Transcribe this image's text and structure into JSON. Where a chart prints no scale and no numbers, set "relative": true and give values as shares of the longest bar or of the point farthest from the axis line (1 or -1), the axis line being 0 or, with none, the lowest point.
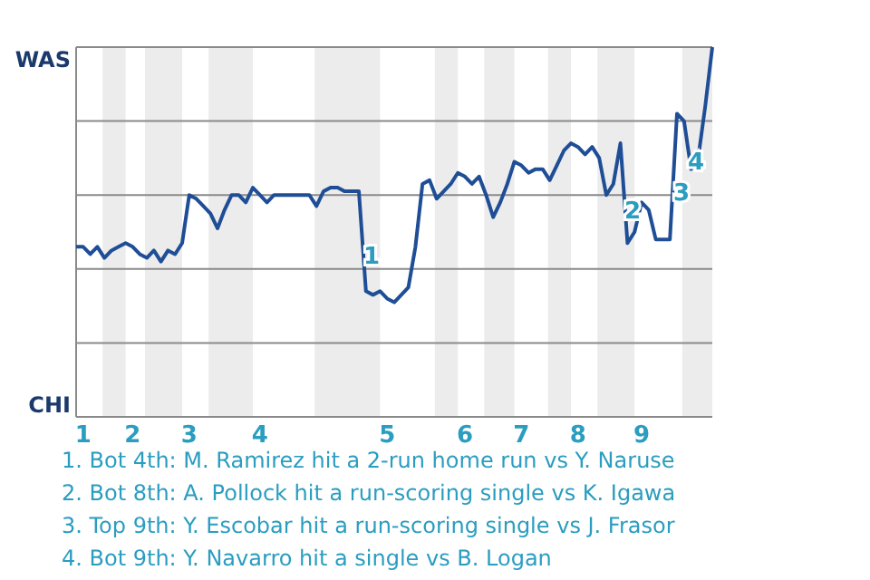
{
  "chart_data": {
    "type": "line",
    "relative": true,
    "categories": [
      null,
      "1",
      null,
      null,
      null,
      null,
      null,
      null,
      "2",
      null,
      null,
      null,
      null,
      null,
      null,
      null,
      "3",
      null,
      null,
      null,
      null,
      null,
      null,
      null,
      null,
      null,
      "4",
      null,
      null,
      null,
      null,
      null,
      null,
      null,
      null,
      null,
      null,
      null,
      null,
      null,
      null,
      null,
      null,
      null,
      "5",
      null,
      null,
      null,
      null,
      null,
      null,
      null,
      null,
      null,
      null,
      "6",
      null,
      null,
      null,
      null,
      null,
      null,
      null,
      "7",
      null,
      null,
      null,
      null,
      null,
      null,
      null,
      "8",
      null,
      null,
      null,
      null,
      null,
      null,
      null,
      null,
      "9",
      null,
      null,
      null,
      null,
      null,
      null,
      null,
      null,
      null,
      null
    ],
    "series": [
      {
        "color": "#1f4e96",
        "values": [
          0.46,
          0.46,
          0.44,
          0.46,
          0.43,
          0.45,
          0.46,
          0.47,
          0.46,
          0.44,
          0.43,
          0.45,
          0.42,
          0.45,
          0.44,
          0.47,
          0.6,
          0.59,
          0.57,
          0.55,
          0.51,
          0.56,
          0.6,
          0.6,
          0.58,
          0.62,
          0.6,
          0.58,
          0.6,
          0.6,
          0.6,
          0.6,
          0.6,
          0.6,
          0.57,
          0.61,
          0.62,
          0.62,
          0.61,
          0.61,
          0.61,
          0.34,
          0.33,
          0.34,
          0.32,
          0.31,
          0.33,
          0.35,
          0.46,
          0.63,
          0.64,
          0.59,
          0.61,
          0.63,
          0.66,
          0.65,
          0.63,
          0.65,
          0.6,
          0.54,
          0.58,
          0.63,
          0.69,
          0.68,
          0.66,
          0.67,
          0.67,
          0.64,
          0.68,
          0.72,
          0.74,
          0.73,
          0.71,
          0.73,
          0.7,
          0.6,
          0.63,
          0.74,
          0.47,
          0.5,
          0.58,
          0.56,
          0.48,
          0.48,
          0.48,
          0.82,
          0.8,
          0.67,
          0.7,
          0.84,
          1
        ]
      }
    ],
    "grid": "y",
    "annotations": [
      "WAS",
      "CHI",
      "1",
      "2",
      "3",
      "4",
      "1. Bot 4th: M. Ramirez hit a 2-run home run vs Y. Naruse",
      "2. Bot 8th: A. Pollock hit a run-scoring single vs K. Igawa",
      "3. Top 9th: Y. Escobar hit a run-scoring single vs J. Frasor",
      "4. Bot 9th: Y. Navarro hit a single vs B. Logan"
    ]
  }
}
